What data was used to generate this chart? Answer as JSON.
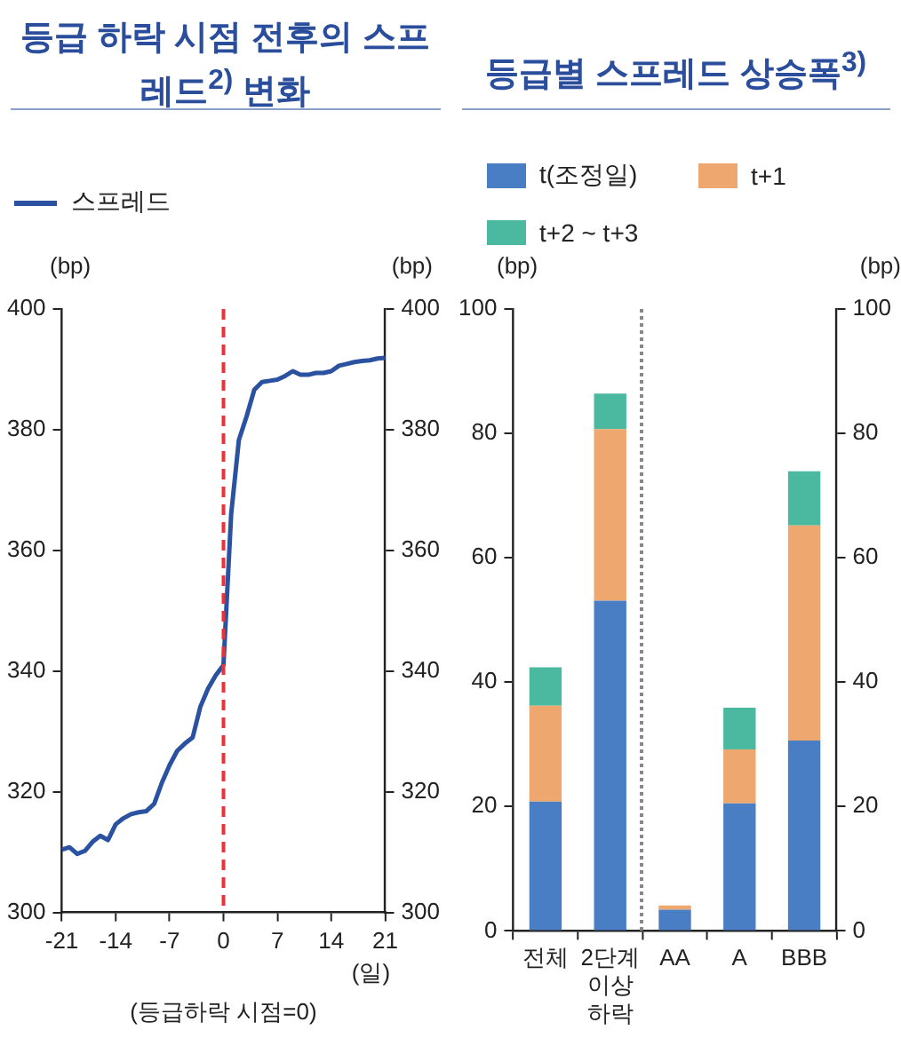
{
  "chart_data": [
    {
      "type": "line",
      "title": "등급 하락 시점 전후의 스프레드$^{2)}$ 변화",
      "xlabel": "(등급하락 시점=0)",
      "ylabel": "(bp)",
      "y2label": "(bp)",
      "x": [
        -21,
        -20,
        -19,
        -18,
        -17,
        -16,
        -15,
        -14,
        -13,
        -12,
        -11,
        -10,
        -9,
        -8,
        -7,
        -6,
        -5,
        -4,
        -3,
        -2,
        -1,
        0,
        1,
        2,
        3,
        4,
        5,
        6,
        7,
        8,
        9,
        10,
        11,
        12,
        13,
        14,
        15,
        16,
        17,
        18,
        19,
        20,
        21
      ],
      "series": [
        {
          "name": "스프레드",
          "color": "#2a52a0",
          "values": [
            310.4,
            310.8,
            309.7,
            310.2,
            311.7,
            312.7,
            312,
            314.6,
            315.6,
            316.3,
            316.6,
            316.8,
            318,
            321.5,
            324.4,
            326.8,
            328,
            329,
            334.1,
            337.1,
            339.3,
            341,
            366,
            378.3,
            382.2,
            386.6,
            387.9,
            388.1,
            388.3,
            388.9,
            389.7,
            389.1,
            389.1,
            389.4,
            389.4,
            389.7,
            390.6,
            390.9,
            391.2,
            391.4,
            391.5,
            391.8,
            391.9
          ]
        }
      ],
      "xlim": [
        -21,
        21
      ],
      "xticks": [
        -21,
        -14,
        -7,
        0,
        7,
        14,
        21
      ],
      "ylim": [
        300,
        400
      ],
      "yticks": [
        300,
        320,
        340,
        360,
        380,
        400
      ],
      "y2lim": [
        300,
        400
      ],
      "y2ticks": [
        300,
        320,
        340,
        360,
        380,
        400
      ],
      "ref_lines": [
        {
          "axis": "x",
          "value": 0,
          "color": "#e8323c",
          "line_style": "dashed"
        }
      ],
      "annotations": [
        "(일)"
      ],
      "grid": false,
      "legend": "top"
    },
    {
      "type": "bar",
      "title": "등급별 스프레드 상승폭$^{3)}$",
      "ylabel": "(bp)",
      "y2label": "(bp)",
      "categories": [
        "전체",
        "2단계 이상 하락",
        "AA",
        "A",
        "BBB"
      ],
      "stacked": true,
      "series": [
        {
          "name": "t(조정일)",
          "color": "#4a7ec4",
          "values": [
            20.8,
            53.1,
            3.4,
            20.5,
            30.6
          ]
        },
        {
          "name": "t+1",
          "color": "#eda76f",
          "values": [
            15.4,
            27.6,
            0.7,
            8.7,
            34.6
          ]
        },
        {
          "name": "t+2 ~ t+3",
          "color": "#4bb9a0",
          "values": [
            6.2,
            5.7,
            0,
            6.7,
            8.7
          ]
        }
      ],
      "ylim": [
        0,
        100
      ],
      "yticks": [
        0,
        20,
        40,
        60,
        80,
        100
      ],
      "y2lim": [
        0,
        100
      ],
      "y2ticks": [
        0,
        20,
        40,
        60,
        80,
        100
      ],
      "grid": false,
      "legend": "top"
    }
  ]
}
